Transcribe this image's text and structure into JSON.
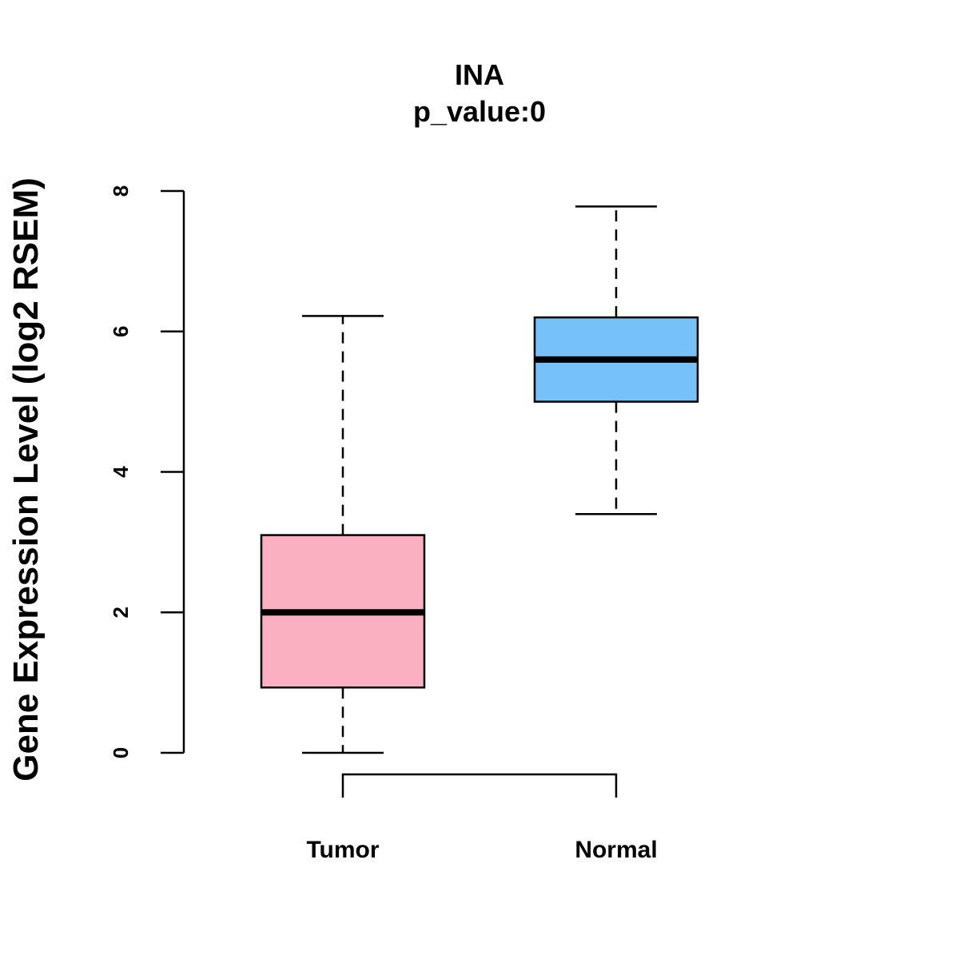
{
  "chart_data": {
    "type": "boxplot",
    "title": "INA",
    "subtitle": "p_value:0",
    "ylabel": "Gene Expression Level (log2 RSEM)",
    "xlabel": "",
    "ylim": [
      0,
      8
    ],
    "yticks": [
      0,
      2,
      4,
      6,
      8
    ],
    "categories": [
      "Tumor",
      "Normal"
    ],
    "boxes": [
      {
        "name": "Tumor",
        "min": 0.0,
        "q1": 0.93,
        "median": 2.0,
        "q3": 3.1,
        "max": 6.22,
        "color": "#FBB0C2"
      },
      {
        "name": "Normal",
        "min": 3.4,
        "q1": 5.0,
        "median": 5.6,
        "q3": 6.2,
        "max": 7.78,
        "color": "#76C1F8"
      }
    ],
    "comparison": [
      "Tumor",
      "Normal"
    ]
  }
}
